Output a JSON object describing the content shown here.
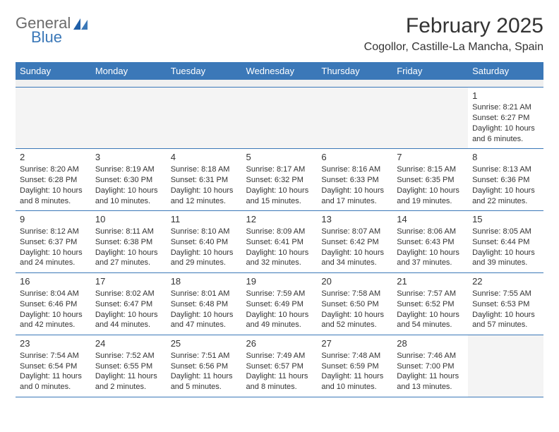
{
  "brand": {
    "word1": "General",
    "word2": "Blue"
  },
  "header": {
    "month_title": "February 2025",
    "location": "Cogollor, Castille-La Mancha, Spain"
  },
  "colors": {
    "header_bar": "#3b78b8",
    "header_text": "#ffffff",
    "grid_line": "#3b78b8",
    "empty_cell": "#f4f4f4",
    "spacer": "#f0f0f0",
    "body_text": "#333333",
    "logo_gray": "#6b6b6b",
    "logo_blue": "#3b78b8",
    "background": "#ffffff"
  },
  "typography": {
    "title_fontsize_pt": 22,
    "location_fontsize_pt": 12,
    "day_header_fontsize_pt": 10,
    "cell_fontsize_pt": 8,
    "daynum_fontsize_pt": 10
  },
  "calendar": {
    "type": "table",
    "columns": [
      "Sunday",
      "Monday",
      "Tuesday",
      "Wednesday",
      "Thursday",
      "Friday",
      "Saturday"
    ],
    "weeks": [
      [
        null,
        null,
        null,
        null,
        null,
        null,
        {
          "day": "1",
          "sunrise": "Sunrise: 8:21 AM",
          "sunset": "Sunset: 6:27 PM",
          "daylight": "Daylight: 10 hours and 6 minutes."
        }
      ],
      [
        {
          "day": "2",
          "sunrise": "Sunrise: 8:20 AM",
          "sunset": "Sunset: 6:28 PM",
          "daylight": "Daylight: 10 hours and 8 minutes."
        },
        {
          "day": "3",
          "sunrise": "Sunrise: 8:19 AM",
          "sunset": "Sunset: 6:30 PM",
          "daylight": "Daylight: 10 hours and 10 minutes."
        },
        {
          "day": "4",
          "sunrise": "Sunrise: 8:18 AM",
          "sunset": "Sunset: 6:31 PM",
          "daylight": "Daylight: 10 hours and 12 minutes."
        },
        {
          "day": "5",
          "sunrise": "Sunrise: 8:17 AM",
          "sunset": "Sunset: 6:32 PM",
          "daylight": "Daylight: 10 hours and 15 minutes."
        },
        {
          "day": "6",
          "sunrise": "Sunrise: 8:16 AM",
          "sunset": "Sunset: 6:33 PM",
          "daylight": "Daylight: 10 hours and 17 minutes."
        },
        {
          "day": "7",
          "sunrise": "Sunrise: 8:15 AM",
          "sunset": "Sunset: 6:35 PM",
          "daylight": "Daylight: 10 hours and 19 minutes."
        },
        {
          "day": "8",
          "sunrise": "Sunrise: 8:13 AM",
          "sunset": "Sunset: 6:36 PM",
          "daylight": "Daylight: 10 hours and 22 minutes."
        }
      ],
      [
        {
          "day": "9",
          "sunrise": "Sunrise: 8:12 AM",
          "sunset": "Sunset: 6:37 PM",
          "daylight": "Daylight: 10 hours and 24 minutes."
        },
        {
          "day": "10",
          "sunrise": "Sunrise: 8:11 AM",
          "sunset": "Sunset: 6:38 PM",
          "daylight": "Daylight: 10 hours and 27 minutes."
        },
        {
          "day": "11",
          "sunrise": "Sunrise: 8:10 AM",
          "sunset": "Sunset: 6:40 PM",
          "daylight": "Daylight: 10 hours and 29 minutes."
        },
        {
          "day": "12",
          "sunrise": "Sunrise: 8:09 AM",
          "sunset": "Sunset: 6:41 PM",
          "daylight": "Daylight: 10 hours and 32 minutes."
        },
        {
          "day": "13",
          "sunrise": "Sunrise: 8:07 AM",
          "sunset": "Sunset: 6:42 PM",
          "daylight": "Daylight: 10 hours and 34 minutes."
        },
        {
          "day": "14",
          "sunrise": "Sunrise: 8:06 AM",
          "sunset": "Sunset: 6:43 PM",
          "daylight": "Daylight: 10 hours and 37 minutes."
        },
        {
          "day": "15",
          "sunrise": "Sunrise: 8:05 AM",
          "sunset": "Sunset: 6:44 PM",
          "daylight": "Daylight: 10 hours and 39 minutes."
        }
      ],
      [
        {
          "day": "16",
          "sunrise": "Sunrise: 8:04 AM",
          "sunset": "Sunset: 6:46 PM",
          "daylight": "Daylight: 10 hours and 42 minutes."
        },
        {
          "day": "17",
          "sunrise": "Sunrise: 8:02 AM",
          "sunset": "Sunset: 6:47 PM",
          "daylight": "Daylight: 10 hours and 44 minutes."
        },
        {
          "day": "18",
          "sunrise": "Sunrise: 8:01 AM",
          "sunset": "Sunset: 6:48 PM",
          "daylight": "Daylight: 10 hours and 47 minutes."
        },
        {
          "day": "19",
          "sunrise": "Sunrise: 7:59 AM",
          "sunset": "Sunset: 6:49 PM",
          "daylight": "Daylight: 10 hours and 49 minutes."
        },
        {
          "day": "20",
          "sunrise": "Sunrise: 7:58 AM",
          "sunset": "Sunset: 6:50 PM",
          "daylight": "Daylight: 10 hours and 52 minutes."
        },
        {
          "day": "21",
          "sunrise": "Sunrise: 7:57 AM",
          "sunset": "Sunset: 6:52 PM",
          "daylight": "Daylight: 10 hours and 54 minutes."
        },
        {
          "day": "22",
          "sunrise": "Sunrise: 7:55 AM",
          "sunset": "Sunset: 6:53 PM",
          "daylight": "Daylight: 10 hours and 57 minutes."
        }
      ],
      [
        {
          "day": "23",
          "sunrise": "Sunrise: 7:54 AM",
          "sunset": "Sunset: 6:54 PM",
          "daylight": "Daylight: 11 hours and 0 minutes."
        },
        {
          "day": "24",
          "sunrise": "Sunrise: 7:52 AM",
          "sunset": "Sunset: 6:55 PM",
          "daylight": "Daylight: 11 hours and 2 minutes."
        },
        {
          "day": "25",
          "sunrise": "Sunrise: 7:51 AM",
          "sunset": "Sunset: 6:56 PM",
          "daylight": "Daylight: 11 hours and 5 minutes."
        },
        {
          "day": "26",
          "sunrise": "Sunrise: 7:49 AM",
          "sunset": "Sunset: 6:57 PM",
          "daylight": "Daylight: 11 hours and 8 minutes."
        },
        {
          "day": "27",
          "sunrise": "Sunrise: 7:48 AM",
          "sunset": "Sunset: 6:59 PM",
          "daylight": "Daylight: 11 hours and 10 minutes."
        },
        {
          "day": "28",
          "sunrise": "Sunrise: 7:46 AM",
          "sunset": "Sunset: 7:00 PM",
          "daylight": "Daylight: 11 hours and 13 minutes."
        },
        null
      ]
    ]
  }
}
